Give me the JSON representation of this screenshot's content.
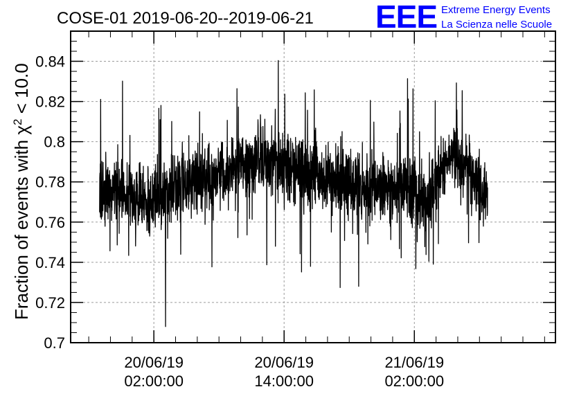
{
  "chart_data": {
    "type": "line",
    "title": "COSE-01 2019-06-20--2019-06-21",
    "ylabel_prefix": "Fraction of events with χ",
    "ylabel_sup": "2",
    "ylabel_suffix": " < 10.0",
    "xlabel": "",
    "ylim": [
      0.7,
      0.855
    ],
    "yticks": [
      0.7,
      0.72,
      0.74,
      0.76,
      0.78,
      0.8,
      0.82,
      0.84
    ],
    "ytick_labels": [
      "0.7",
      "0.72",
      "0.74",
      "0.76",
      "0.78",
      "0.8",
      "0.82",
      "0.84"
    ],
    "xlim": [
      "2019-06-19 18:20:00",
      "2019-06-21 15:00:00"
    ],
    "xticks": [
      {
        "date": "2019-06-20 02:00:00",
        "line1": "20/06/19",
        "line2": "02:00:00"
      },
      {
        "date": "2019-06-20 14:00:00",
        "line1": "20/06/19",
        "line2": "14:00:00"
      },
      {
        "date": "2019-06-21 02:00:00",
        "line1": "21/06/19",
        "line2": "02:00:00"
      }
    ],
    "grid": true,
    "line_color": "#000000",
    "series": [
      {
        "x_start": "2019-06-19 21:00:00",
        "x_end": "2019-06-21 08:45:00",
        "trend": [
          [
            "2019-06-19 21:00:00",
            0.778
          ],
          [
            "2019-06-19 23:00:00",
            0.774
          ],
          [
            "2019-06-20 01:00:00",
            0.77
          ],
          [
            "2019-06-20 03:00:00",
            0.772
          ],
          [
            "2019-06-20 05:00:00",
            0.78
          ],
          [
            "2019-06-20 07:00:00",
            0.782
          ],
          [
            "2019-06-20 09:00:00",
            0.785
          ],
          [
            "2019-06-20 11:00:00",
            0.792
          ],
          [
            "2019-06-20 13:00:00",
            0.79
          ],
          [
            "2019-06-20 15:00:00",
            0.785
          ],
          [
            "2019-06-20 17:00:00",
            0.784
          ],
          [
            "2019-06-20 19:00:00",
            0.782
          ],
          [
            "2019-06-20 21:00:00",
            0.778
          ],
          [
            "2019-06-20 23:00:00",
            0.776
          ],
          [
            "2019-06-21 01:00:00",
            0.778
          ],
          [
            "2019-06-21 02:00:00",
            0.774
          ],
          [
            "2019-06-21 03:00:00",
            0.768
          ],
          [
            "2019-06-21 04:00:00",
            0.78
          ],
          [
            "2019-06-21 05:00:00",
            0.79
          ],
          [
            "2019-06-21 06:00:00",
            0.792
          ],
          [
            "2019-06-21 07:00:00",
            0.785
          ],
          [
            "2019-06-21 08:45:00",
            0.772
          ]
        ],
        "spread": 0.0085
      }
    ]
  },
  "logo": {
    "mark": "EEE",
    "line1": "Extreme Energy Events",
    "line2": "La Scienza nelle Scuole"
  }
}
